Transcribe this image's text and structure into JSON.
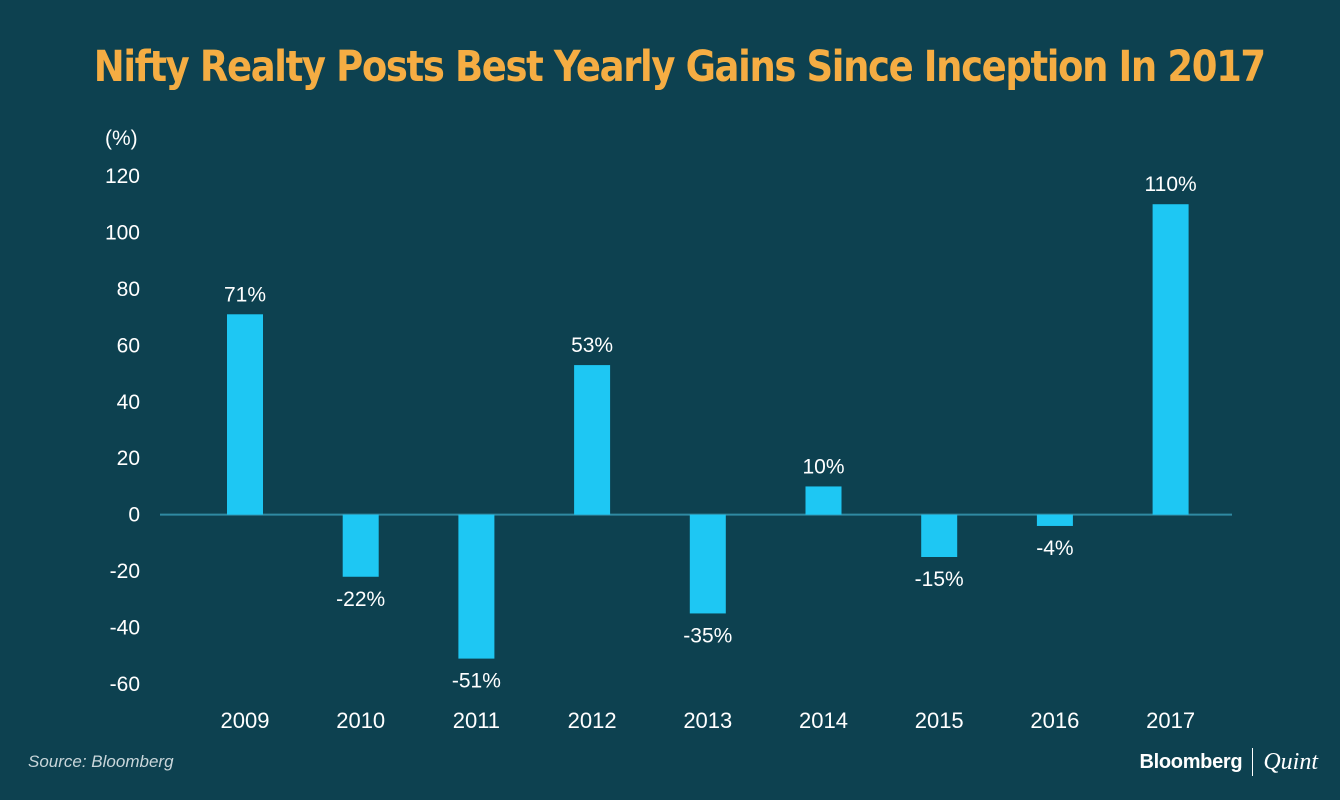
{
  "chart_data": {
    "type": "bar",
    "title": "Nifty Realty Posts Best Yearly Gains Since Inception In 2017",
    "ylabel": "(%)",
    "xlabel": "",
    "categories": [
      "2009",
      "2010",
      "2011",
      "2012",
      "2013",
      "2014",
      "2015",
      "2016",
      "2017"
    ],
    "values": [
      71,
      -22,
      -51,
      53,
      -35,
      10,
      -15,
      -4,
      110
    ],
    "data_labels": [
      "71%",
      "-22%",
      "-51%",
      "53%",
      "-35%",
      "10%",
      "-15%",
      "-4%",
      "110%"
    ],
    "ylim": [
      -60,
      120
    ],
    "yticks": [
      "120",
      "100",
      "80",
      "60",
      "40",
      "20",
      "0",
      "-20",
      "-40",
      "-60"
    ],
    "ytick_values": [
      120,
      100,
      80,
      60,
      40,
      20,
      0,
      -20,
      -40,
      -60
    ],
    "grid": false,
    "legend": "none",
    "colors": {
      "bar": "#1ec7f3",
      "background": "#0d4150",
      "title": "#f5ad43",
      "zero_line": "#2f8aa2"
    }
  },
  "footer": {
    "source": "Source: Bloomberg",
    "brand_left": "Bloomberg",
    "brand_right": "Quint"
  }
}
